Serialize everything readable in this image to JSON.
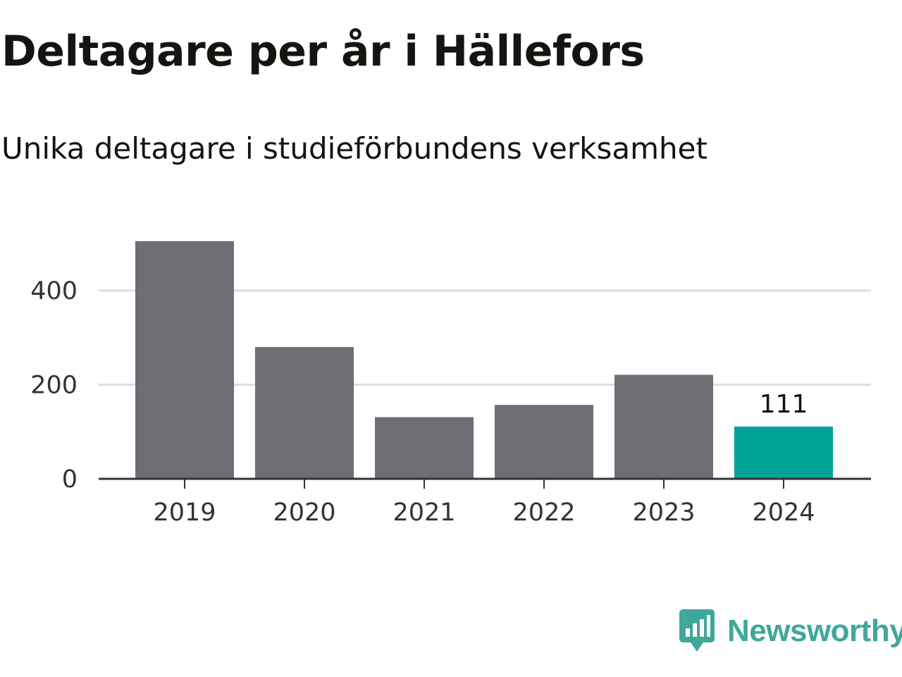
{
  "title": "Deltagare per år i Hällefors",
  "subtitle": "Unika deltagare i studieförbundens verksamhet",
  "logo": {
    "text": "Newsworthy",
    "icon": "bar-chart-speech-bubble-icon",
    "color": "#3fa79c"
  },
  "colors": {
    "bar": "#6e6d73",
    "highlight": "#00a398",
    "grid": "#dedede",
    "axis": "#333333"
  },
  "chart_data": {
    "type": "bar",
    "categories": [
      "2019",
      "2020",
      "2021",
      "2022",
      "2023",
      "2024"
    ],
    "values": [
      505,
      280,
      131,
      157,
      221,
      111
    ],
    "highlight_index": 5,
    "data_labels": [
      {
        "index": 5,
        "text": "111"
      }
    ],
    "title": "Deltagare per år i Hällefors",
    "subtitle": "Unika deltagare i studieförbundens verksamhet",
    "xlabel": "",
    "ylabel": "",
    "ylim": [
      0,
      530
    ],
    "yticks": [
      0,
      200,
      400
    ],
    "grid": true,
    "legend": "none"
  }
}
